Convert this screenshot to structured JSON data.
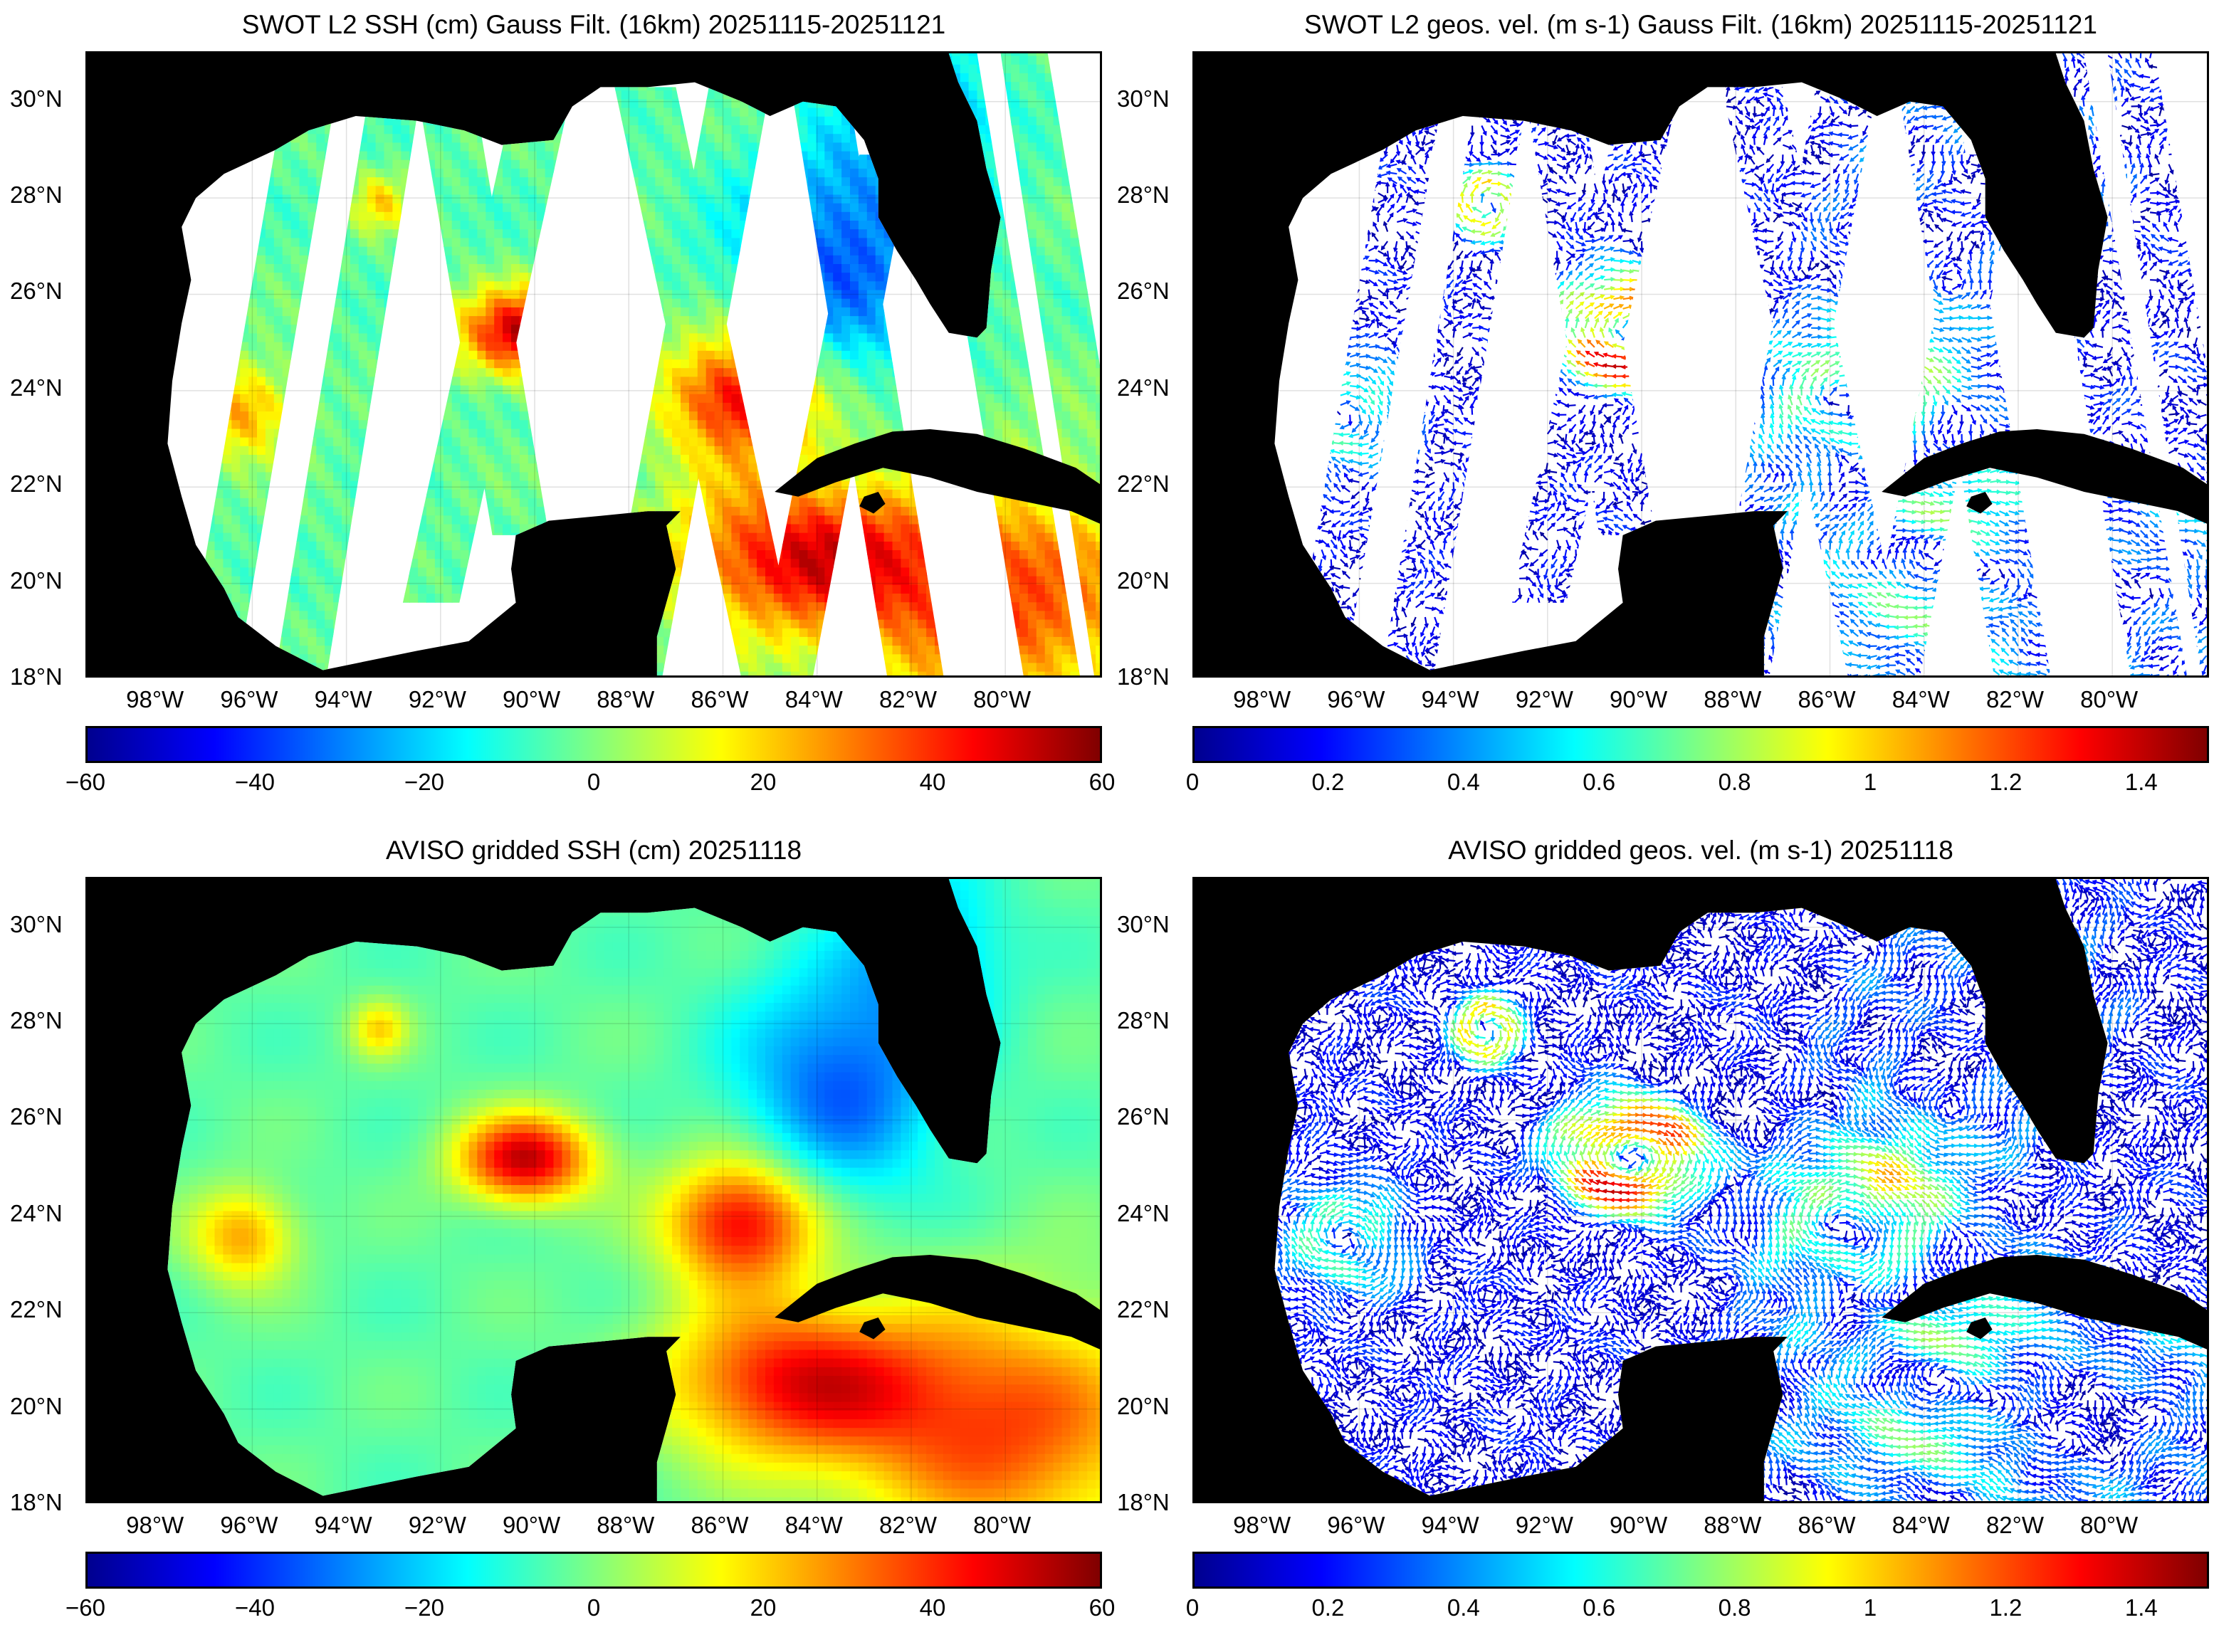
{
  "lon_ticks": [
    "98°W",
    "96°W",
    "94°W",
    "92°W",
    "90°W",
    "88°W",
    "86°W",
    "84°W",
    "82°W",
    "80°W"
  ],
  "lat_ticks": [
    "30°N",
    "28°N",
    "26°N",
    "24°N",
    "22°N",
    "20°N",
    "18°N"
  ],
  "colormap": [
    "#00008f",
    "#0000ff",
    "#0080ff",
    "#00ffff",
    "#80ff80",
    "#ffff00",
    "#ff8000",
    "#ff0000",
    "#800000"
  ],
  "land_color": "#000000",
  "panels": [
    {
      "id": "swot-ssh",
      "title": "SWOT L2 SSH (cm) Gauss Filt. (16km) 20251115-20251121",
      "colorbar_ticks": [
        "−60",
        "−40",
        "−20",
        "0",
        "20",
        "40",
        "60"
      ],
      "colorbar_range": [
        -60,
        60
      ]
    },
    {
      "id": "swot-vel",
      "title": "SWOT L2 geos. vel. (m s-1) Gauss Filt. (16km) 20251115-20251121",
      "colorbar_ticks": [
        "0",
        "0.2",
        "0.4",
        "0.6",
        "0.8",
        "1",
        "1.2",
        "1.4"
      ],
      "colorbar_range": [
        0,
        1.5
      ]
    },
    {
      "id": "aviso-ssh",
      "title": "AVISO gridded SSH (cm) 20251118",
      "colorbar_ticks": [
        "−60",
        "−40",
        "−20",
        "0",
        "20",
        "40",
        "60"
      ],
      "colorbar_range": [
        -60,
        60
      ]
    },
    {
      "id": "aviso-vel",
      "title": "AVISO gridded geos. vel. (m s-1)  20251118",
      "colorbar_ticks": [
        "0",
        "0.2",
        "0.4",
        "0.6",
        "0.8",
        "1",
        "1.2",
        "1.4"
      ],
      "colorbar_range": [
        0,
        1.5
      ]
    }
  ]
}
